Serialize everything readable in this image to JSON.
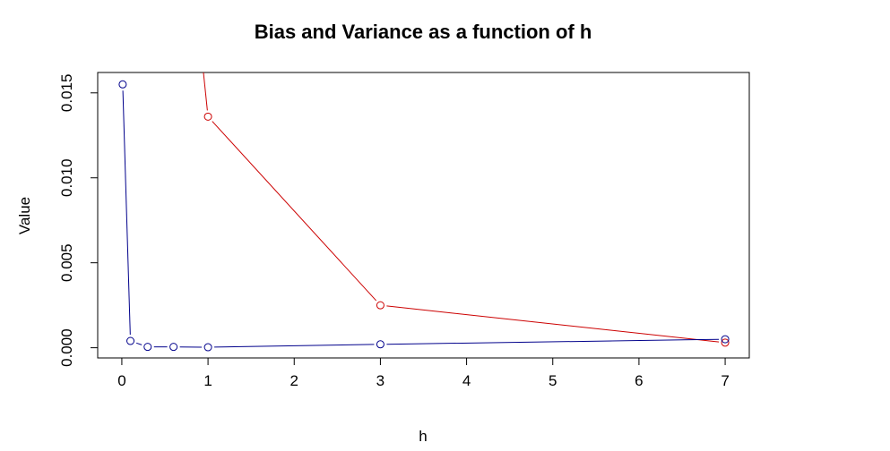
{
  "chart_data": {
    "type": "line",
    "title": "Bias and Variance as a function of h",
    "xlabel": "h",
    "ylabel": "Value",
    "xlim": [
      -0.28,
      7.28
    ],
    "ylim": [
      -0.0006,
      0.0162
    ],
    "x_ticks": [
      0,
      1,
      2,
      3,
      4,
      5,
      6,
      7
    ],
    "x_tick_labels": [
      "0",
      "1",
      "2",
      "3",
      "4",
      "5",
      "6",
      "7"
    ],
    "y_ticks": [
      0.0,
      0.005,
      0.01,
      0.015
    ],
    "y_tick_labels": [
      "0.000",
      "0.005",
      "0.010",
      "0.015"
    ],
    "grid": false,
    "legend": "none",
    "series": [
      {
        "color": "#cc0000",
        "marker": "open-circle",
        "x": [
          0.9,
          1,
          3,
          7
        ],
        "y": [
          0.0185,
          0.0136,
          0.0025,
          0.0003
        ]
      },
      {
        "color": "#00008b",
        "marker": "open-circle",
        "x": [
          0.01,
          0.1,
          0.3,
          0.6,
          1,
          3,
          7
        ],
        "y": [
          0.0155,
          0.0004,
          5e-05,
          5e-05,
          3e-05,
          0.0002,
          0.0005
        ]
      }
    ]
  }
}
